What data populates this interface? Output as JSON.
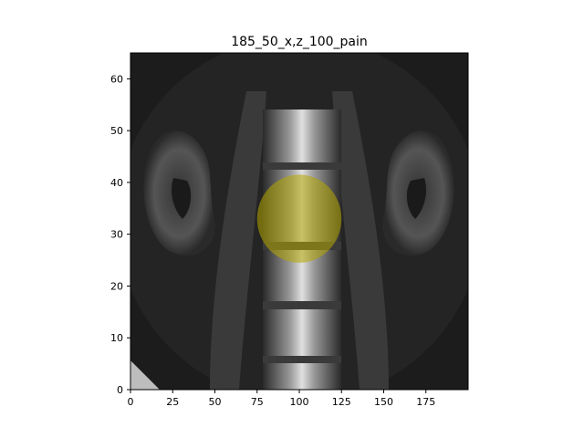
{
  "figure": {
    "title": "185_50_x,z_100_pain"
  },
  "image": {
    "x_range": [
      0,
      200
    ],
    "y_range": [
      0,
      65
    ],
    "x_ticks": [
      0,
      25,
      50,
      75,
      100,
      125,
      150,
      175
    ],
    "y_ticks": [
      0,
      10,
      20,
      30,
      40,
      50,
      60
    ],
    "overlay": {
      "shape": "circle",
      "center": [
        100,
        33
      ],
      "radius_x": 25,
      "radius_y": 8.5,
      "color": "#b5a800",
      "opacity": 0.55
    }
  },
  "colors": {
    "background": "#ffffff",
    "image_dark": "#1a1a1a",
    "bone": "#d9d9d9",
    "overlay_yellow": "#b5a800"
  }
}
